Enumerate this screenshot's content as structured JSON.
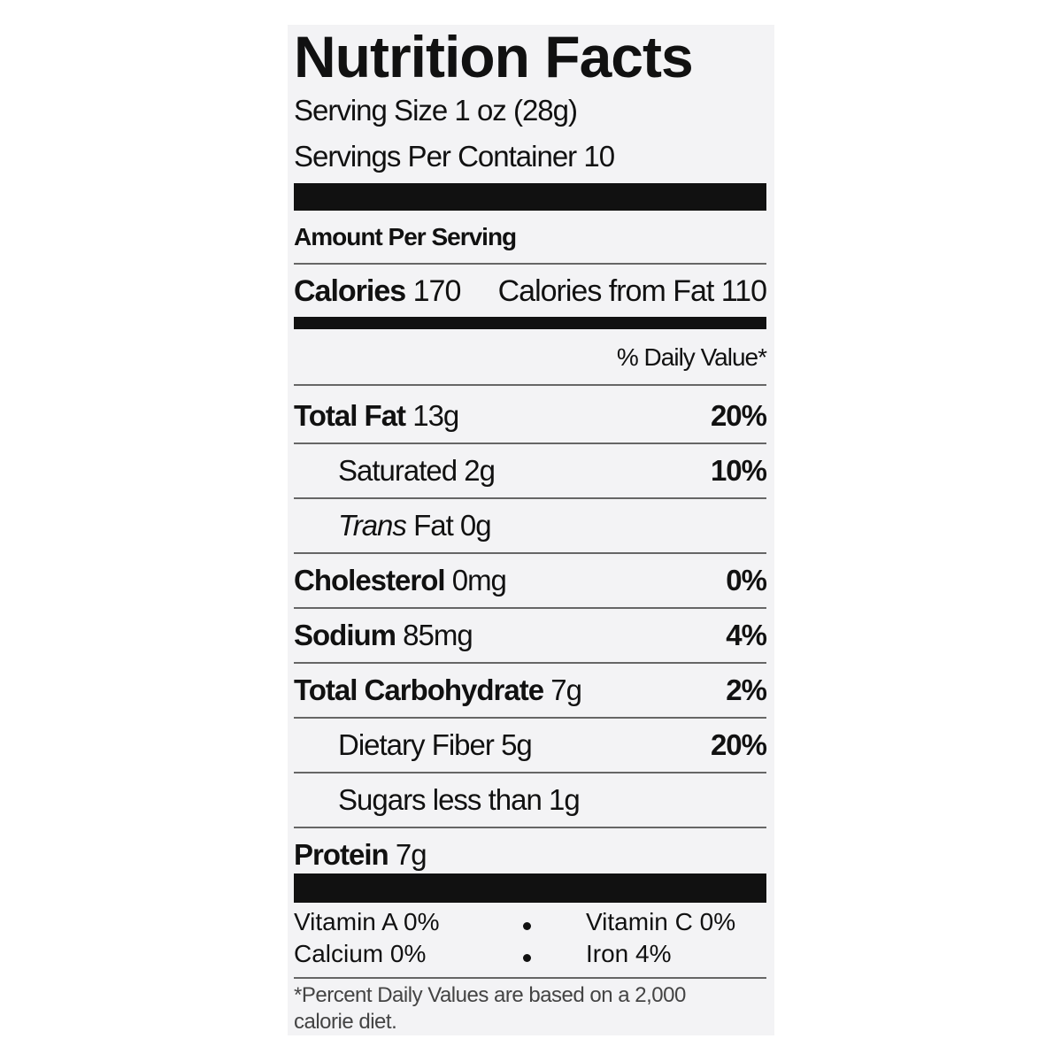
{
  "title": "Nutrition Facts",
  "serving_size": "Serving Size 1 oz (28g)",
  "servings_per_container": "Servings Per Container 10",
  "amount_per_serving": "Amount Per Serving",
  "calories": {
    "label": "Calories",
    "value": "170"
  },
  "calories_from_fat": "Calories from Fat 110",
  "daily_value_header": "% Daily Value*",
  "nutrients": [
    {
      "name": "Total Fat",
      "amount": "13g",
      "dv": "20%",
      "level": 0
    },
    {
      "name": "Saturated",
      "amount": "2g",
      "dv": "10%",
      "level": 1
    },
    {
      "name": "Trans",
      "amount": "Fat 0g",
      "level": 1,
      "italic": true
    },
    {
      "name": "Cholesterol",
      "amount": "0mg",
      "dv": "0%",
      "level": 0
    },
    {
      "name": "Sodium",
      "amount": "85mg",
      "dv": "4%",
      "level": 0
    },
    {
      "name": "Total Carbohydrate",
      "amount": "7g",
      "dv": "2%",
      "level": 0
    },
    {
      "name": "Dietary Fiber",
      "amount": "5g",
      "dv": "20%",
      "level": 1
    },
    {
      "name": "Sugars",
      "amount": "less than 1g",
      "level": 1
    },
    {
      "name": "Protein",
      "amount": "7g",
      "level": 0
    }
  ],
  "vitamins": [
    [
      "Vitamin A 0%",
      "Vitamin C 0%"
    ],
    [
      "Calcium 0%",
      "Iron 4%"
    ]
  ],
  "footnote": "*Percent Daily Values are based on a 2,000 calorie diet."
}
